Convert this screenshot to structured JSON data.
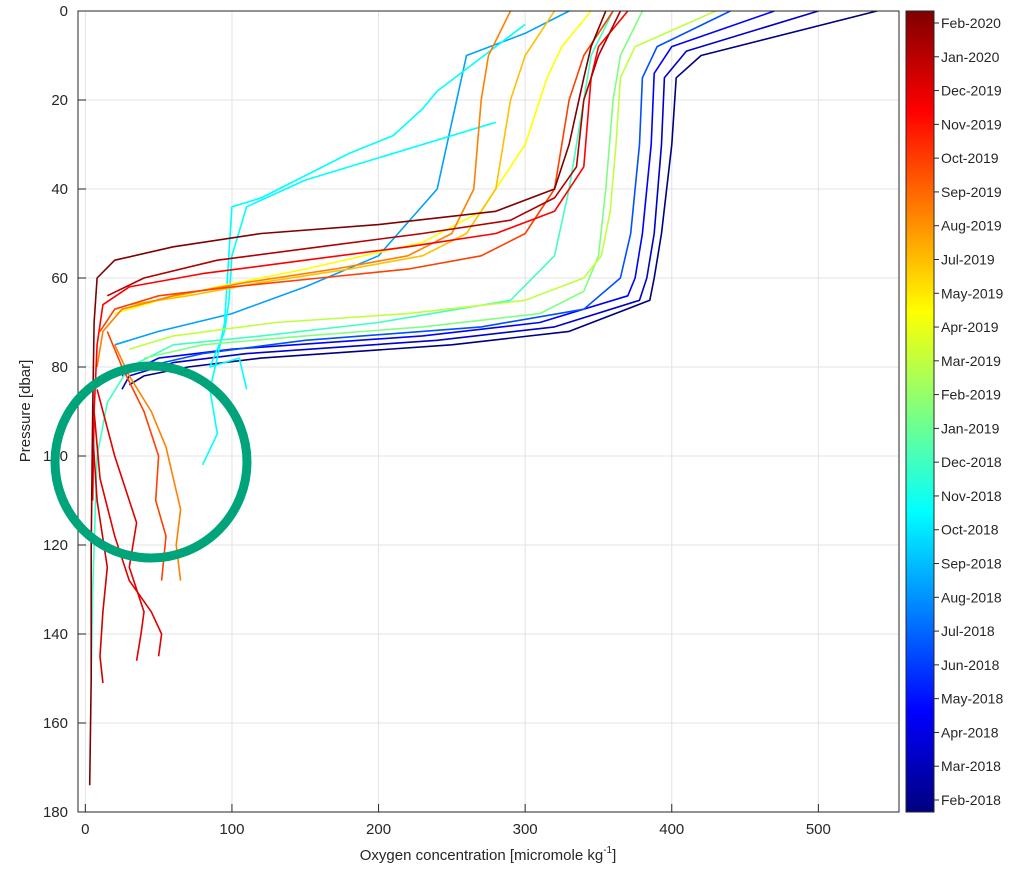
{
  "chart_data": {
    "type": "line",
    "title": "",
    "xlabel": "Oxygen concentration [micromole kg",
    "xlabel_superscript": "-1",
    "xlabel_suffix": "]",
    "ylabel": "Pressure [dbar]",
    "xlim": [
      -5,
      555
    ],
    "ylim": [
      0,
      180
    ],
    "y_reversed": true,
    "x_ticks": [
      0,
      100,
      200,
      300,
      400,
      500
    ],
    "y_ticks": [
      0,
      20,
      40,
      60,
      80,
      100,
      120,
      140,
      160,
      180
    ],
    "grid": true,
    "colorbar": {
      "placement": "right",
      "colormap": "jet",
      "labels": [
        "Feb-2020",
        "Jan-2020",
        "Dec-2019",
        "Nov-2019",
        "Oct-2019",
        "Sep-2019",
        "Aug-2019",
        "Jul-2019",
        "May-2019",
        "Apr-2019",
        "Mar-2019",
        "Feb-2019",
        "Jan-2019",
        "Dec-2018",
        "Nov-2018",
        "Oct-2018",
        "Sep-2018",
        "Aug-2018",
        "Jul-2018",
        "Jun-2018",
        "May-2018",
        "Apr-2018",
        "Mar-2018",
        "Feb-2018"
      ]
    },
    "series": [
      {
        "color": "#00007f",
        "x": [
          540,
          420,
          403,
          400,
          393,
          388,
          385,
          330,
          250,
          120,
          70,
          40,
          30
        ],
        "y": [
          0,
          10,
          15,
          30,
          50,
          60,
          65,
          72,
          75,
          78,
          80,
          82,
          84
        ]
      },
      {
        "color": "#0000c8",
        "x": [
          500,
          410,
          395,
          393,
          388,
          383,
          378,
          320,
          240,
          110,
          60,
          30,
          25
        ],
        "y": [
          0,
          9,
          15,
          30,
          50,
          60,
          65,
          71,
          74,
          77,
          79,
          82,
          85
        ]
      },
      {
        "color": "#0000ff",
        "x": [
          470,
          400,
          388,
          386,
          380,
          375,
          370,
          310,
          230,
          100,
          50,
          25
        ],
        "y": [
          0,
          8,
          14,
          30,
          50,
          60,
          64,
          70,
          73,
          76,
          78,
          82
        ]
      },
      {
        "color": "#0050ff",
        "x": [
          440,
          390,
          380,
          378,
          372,
          365,
          340,
          270,
          150,
          80,
          40
        ],
        "y": [
          0,
          8,
          15,
          30,
          50,
          60,
          67,
          71,
          74,
          77,
          80
        ]
      },
      {
        "color": "#00a0ff",
        "x": [
          330,
          300,
          260,
          250,
          240,
          200,
          150,
          100,
          50,
          20
        ],
        "y": [
          0,
          5,
          10,
          25,
          40,
          55,
          62,
          68,
          72,
          75
        ]
      },
      {
        "color": "#00ffff",
        "x": [
          300,
          240,
          230,
          210,
          180,
          120,
          100,
          95,
          90,
          85,
          90,
          80
        ],
        "y": [
          3,
          18,
          22,
          28,
          32,
          42,
          44,
          70,
          78,
          85,
          95,
          102
        ]
      },
      {
        "color": "#00ffff",
        "x": [
          280,
          150,
          110,
          100,
          98,
          95,
          85,
          105,
          110
        ],
        "y": [
          25,
          38,
          44,
          55,
          65,
          72,
          80,
          78,
          85
        ]
      },
      {
        "color": "#40ffc0",
        "x": [
          360,
          345,
          340,
          330,
          320,
          290,
          200,
          120,
          60,
          30,
          15,
          8,
          5,
          4
        ],
        "y": [
          0,
          10,
          20,
          40,
          55,
          65,
          70,
          73,
          75,
          80,
          88,
          100,
          130,
          150
        ]
      },
      {
        "color": "#80ff80",
        "x": [
          380,
          365,
          360,
          355,
          350,
          340,
          310,
          230,
          150,
          80,
          40
        ],
        "y": [
          0,
          10,
          20,
          40,
          55,
          63,
          68,
          71,
          73,
          75,
          78
        ]
      },
      {
        "color": "#c0ff40",
        "x": [
          430,
          375,
          365,
          362,
          358,
          352,
          340,
          300,
          220,
          130,
          60,
          30
        ],
        "y": [
          0,
          8,
          15,
          30,
          45,
          55,
          60,
          65,
          68,
          70,
          73,
          76
        ]
      },
      {
        "color": "#ffff00",
        "x": [
          345,
          325,
          315,
          300,
          270,
          230,
          150,
          90,
          50,
          20
        ],
        "y": [
          0,
          8,
          15,
          30,
          45,
          52,
          58,
          62,
          65,
          68
        ]
      },
      {
        "color": "#ffc000",
        "x": [
          320,
          300,
          290,
          280,
          260,
          230,
          180,
          120,
          70,
          30
        ],
        "y": [
          0,
          10,
          20,
          40,
          50,
          55,
          58,
          61,
          64,
          66
        ]
      },
      {
        "color": "#ff8000",
        "x": [
          290,
          275,
          270,
          265,
          250,
          220,
          170,
          110,
          60,
          25,
          12,
          8
        ],
        "y": [
          0,
          10,
          20,
          40,
          50,
          55,
          58,
          61,
          64,
          67,
          72,
          80
        ]
      },
      {
        "color": "#ff8000",
        "x": [
          20,
          30,
          45,
          55,
          60,
          65,
          62,
          65
        ],
        "y": [
          75,
          82,
          90,
          98,
          105,
          112,
          120,
          128
        ]
      },
      {
        "color": "#ff4000",
        "x": [
          360,
          340,
          330,
          320,
          300,
          270,
          220,
          160,
          100,
          50,
          20,
          10
        ],
        "y": [
          0,
          10,
          20,
          40,
          50,
          55,
          58,
          60,
          62,
          64,
          67,
          72
        ]
      },
      {
        "color": "#ff4000",
        "x": [
          15,
          25,
          40,
          50,
          48,
          55,
          52
        ],
        "y": [
          72,
          80,
          90,
          100,
          110,
          118,
          128
        ]
      },
      {
        "color": "#ff0000",
        "x": [
          370,
          350,
          345,
          340,
          320,
          280,
          220,
          150,
          80,
          30,
          12,
          8,
          6,
          5
        ],
        "y": [
          0,
          8,
          15,
          35,
          45,
          50,
          53,
          56,
          59,
          62,
          66,
          75,
          90,
          110
        ]
      },
      {
        "color": "#e00000",
        "x": [
          8,
          20,
          35,
          30,
          40,
          38,
          35
        ],
        "y": [
          85,
          100,
          115,
          125,
          135,
          140,
          146
        ]
      },
      {
        "color": "#e00000",
        "x": [
          6,
          10,
          20,
          30,
          45,
          52,
          50
        ],
        "y": [
          90,
          105,
          118,
          128,
          135,
          140,
          145
        ]
      },
      {
        "color": "#d00000",
        "x": [
          5,
          8,
          15,
          12,
          10,
          12
        ],
        "y": [
          95,
          110,
          125,
          135,
          145,
          151
        ]
      },
      {
        "color": "#b00000",
        "x": [
          365,
          350,
          340,
          335,
          320,
          290,
          230,
          160,
          90,
          40,
          15
        ],
        "y": [
          0,
          10,
          20,
          35,
          42,
          47,
          50,
          53,
          56,
          60,
          64
        ]
      },
      {
        "color": "#800000",
        "x": [
          355,
          345,
          340,
          330,
          320,
          280,
          200,
          120,
          60,
          20,
          8,
          6,
          5,
          4,
          4,
          3
        ],
        "y": [
          0,
          8,
          15,
          30,
          40,
          45,
          48,
          50,
          53,
          56,
          60,
          70,
          90,
          120,
          150,
          174
        ]
      }
    ]
  },
  "annotation": {
    "type": "circle",
    "color": "#00a47a"
  }
}
